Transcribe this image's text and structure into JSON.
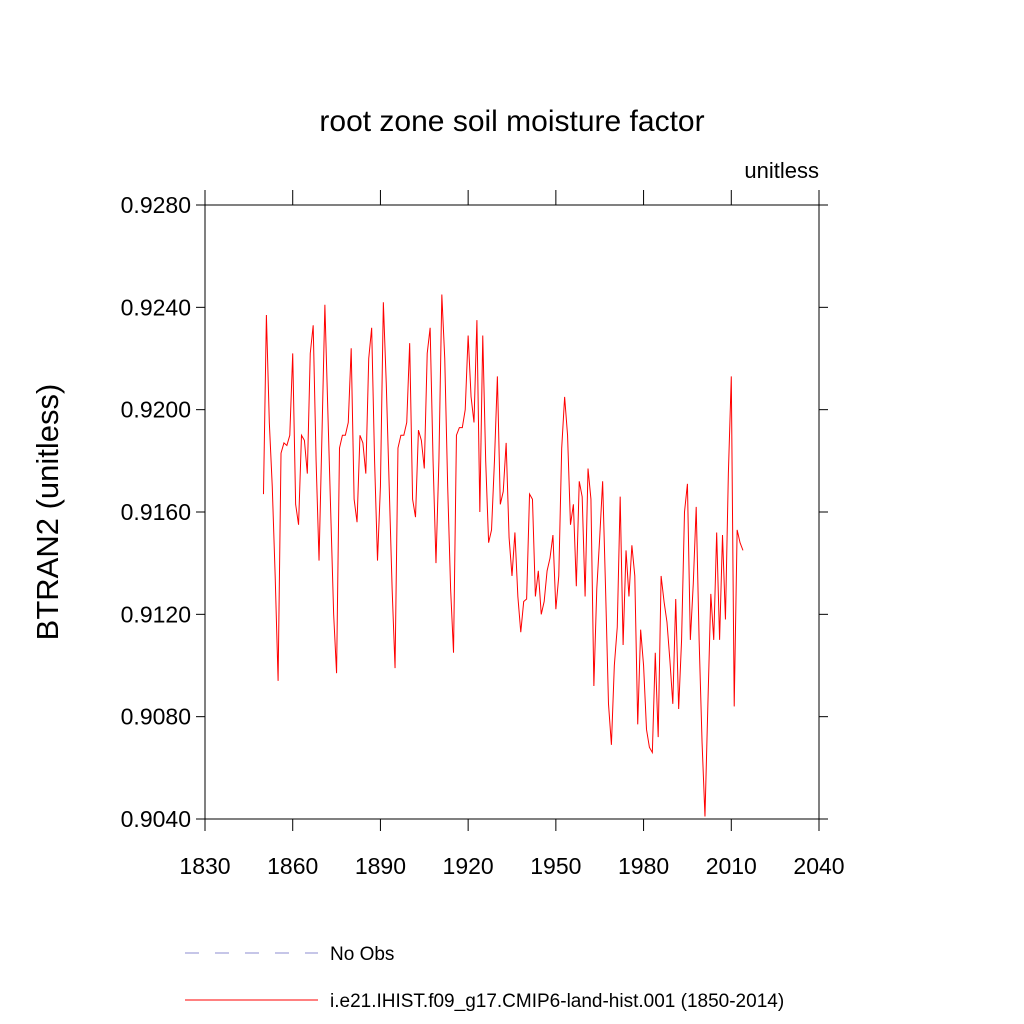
{
  "chart_data": {
    "type": "line",
    "title": "root zone soil moisture factor",
    "units_label": "unitless",
    "ylabel": "BTRAN2  (unitless)",
    "xlim": [
      1830,
      2040
    ],
    "xticks": [
      1830,
      1860,
      1890,
      1920,
      1950,
      1980,
      2010,
      2040
    ],
    "ylim": [
      0.904,
      0.928
    ],
    "yticks": [
      {
        "value": 0.904,
        "label": "0.9040"
      },
      {
        "value": 0.908,
        "label": "0.9080"
      },
      {
        "value": 0.912,
        "label": "0.9120"
      },
      {
        "value": 0.916,
        "label": "0.9160"
      },
      {
        "value": 0.92,
        "label": "0.9200"
      },
      {
        "value": 0.924,
        "label": "0.9240"
      },
      {
        "value": 0.928,
        "label": "0.9280"
      }
    ],
    "x": [
      1850,
      1851,
      1852,
      1853,
      1854,
      1855,
      1856,
      1857,
      1858,
      1859,
      1860,
      1861,
      1862,
      1863,
      1864,
      1865,
      1866,
      1867,
      1868,
      1869,
      1870,
      1871,
      1872,
      1873,
      1874,
      1875,
      1876,
      1877,
      1878,
      1879,
      1880,
      1881,
      1882,
      1883,
      1884,
      1885,
      1886,
      1887,
      1888,
      1889,
      1890,
      1891,
      1892,
      1893,
      1894,
      1895,
      1896,
      1897,
      1898,
      1899,
      1900,
      1901,
      1902,
      1903,
      1904,
      1905,
      1906,
      1907,
      1908,
      1909,
      1910,
      1911,
      1912,
      1913,
      1914,
      1915,
      1916,
      1917,
      1918,
      1919,
      1920,
      1921,
      1922,
      1923,
      1924,
      1925,
      1926,
      1927,
      1928,
      1929,
      1930,
      1931,
      1932,
      1933,
      1934,
      1935,
      1936,
      1937,
      1938,
      1939,
      1940,
      1941,
      1942,
      1943,
      1944,
      1945,
      1946,
      1947,
      1948,
      1949,
      1950,
      1951,
      1952,
      1953,
      1954,
      1955,
      1956,
      1957,
      1958,
      1959,
      1960,
      1961,
      1962,
      1963,
      1964,
      1965,
      1966,
      1967,
      1968,
      1969,
      1970,
      1971,
      1972,
      1973,
      1974,
      1975,
      1976,
      1977,
      1978,
      1979,
      1980,
      1981,
      1982,
      1983,
      1984,
      1985,
      1986,
      1987,
      1988,
      1989,
      1990,
      1991,
      1992,
      1993,
      1994,
      1995,
      1996,
      1997,
      1998,
      1999,
      2000,
      2001,
      2002,
      2003,
      2004,
      2005,
      2006,
      2007,
      2008,
      2009,
      2010,
      2011,
      2012,
      2013,
      2014
    ],
    "series": [
      {
        "name": "i.e21.IHIST.f09_g17.CMIP6-land-hist.001 (1850-2014)",
        "color": "#ff0000",
        "values": [
          0.9167,
          0.9237,
          0.9195,
          0.917,
          0.9135,
          0.9094,
          0.9183,
          0.9187,
          0.9186,
          0.919,
          0.9222,
          0.9163,
          0.9155,
          0.919,
          0.9188,
          0.9175,
          0.9222,
          0.9233,
          0.918,
          0.9141,
          0.919,
          0.9241,
          0.92,
          0.916,
          0.912,
          0.9097,
          0.9185,
          0.919,
          0.919,
          0.9195,
          0.9224,
          0.9165,
          0.9156,
          0.919,
          0.9187,
          0.9175,
          0.922,
          0.9232,
          0.918,
          0.9141,
          0.917,
          0.9242,
          0.921,
          0.917,
          0.913,
          0.9099,
          0.9185,
          0.919,
          0.919,
          0.9195,
          0.9226,
          0.9165,
          0.9158,
          0.9192,
          0.9188,
          0.9177,
          0.9222,
          0.9232,
          0.918,
          0.914,
          0.918,
          0.9245,
          0.922,
          0.917,
          0.913,
          0.9105,
          0.919,
          0.9193,
          0.9193,
          0.92,
          0.9229,
          0.9205,
          0.9195,
          0.9235,
          0.916,
          0.9229,
          0.918,
          0.9148,
          0.9153,
          0.918,
          0.9213,
          0.9163,
          0.9168,
          0.9187,
          0.915,
          0.9135,
          0.9152,
          0.9127,
          0.9113,
          0.9125,
          0.9126,
          0.9167,
          0.9165,
          0.9127,
          0.9137,
          0.912,
          0.9125,
          0.9137,
          0.9142,
          0.9151,
          0.9122,
          0.9135,
          0.9185,
          0.9205,
          0.919,
          0.9155,
          0.9163,
          0.9131,
          0.9172,
          0.9166,
          0.9127,
          0.9177,
          0.9165,
          0.9092,
          0.913,
          0.915,
          0.9172,
          0.913,
          0.9085,
          0.9069,
          0.91,
          0.9115,
          0.9166,
          0.9108,
          0.9145,
          0.9127,
          0.9147,
          0.9135,
          0.9077,
          0.9114,
          0.91,
          0.9075,
          0.9068,
          0.9066,
          0.9105,
          0.9072,
          0.9135,
          0.9125,
          0.9117,
          0.9102,
          0.9085,
          0.9126,
          0.9083,
          0.911,
          0.916,
          0.9171,
          0.911,
          0.9132,
          0.9162,
          0.911,
          0.907,
          0.9041,
          0.9085,
          0.9128,
          0.911,
          0.9152,
          0.911,
          0.9151,
          0.9118,
          0.9175,
          0.9213,
          0.9084,
          0.9153,
          0.9148,
          0.9145
        ]
      }
    ],
    "legend_extra": {
      "name": "No Obs",
      "color": "#8c8cd0",
      "style": "dashed"
    }
  }
}
